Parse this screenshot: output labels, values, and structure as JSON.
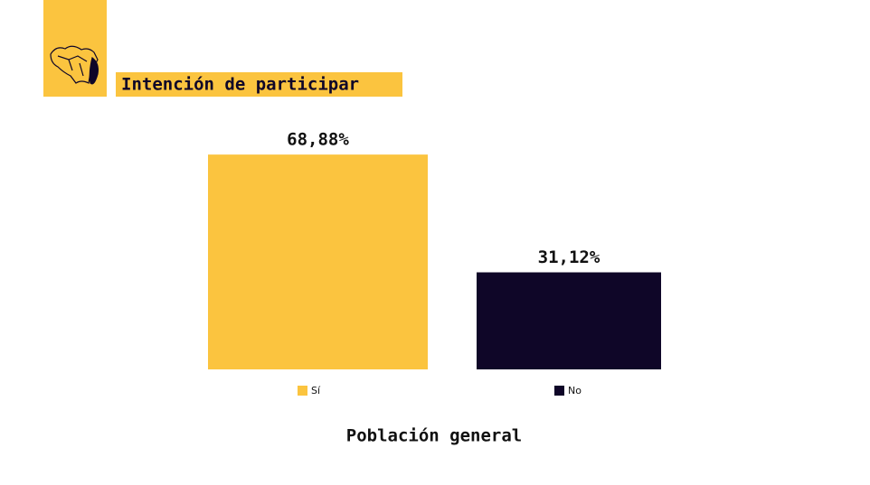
{
  "chart_data": {
    "type": "bar",
    "title": "Intención de participar",
    "x_label": "Población general",
    "categories": [
      "Sí",
      "No"
    ],
    "series": [
      {
        "name": "Sí",
        "color": "#fbc43f"
      },
      {
        "name": "No",
        "color": "#0f0628"
      }
    ],
    "values": [
      68.88,
      31.12
    ],
    "value_labels": [
      "68,88%",
      "31,12%"
    ],
    "ylim": [
      0,
      75
    ]
  }
}
